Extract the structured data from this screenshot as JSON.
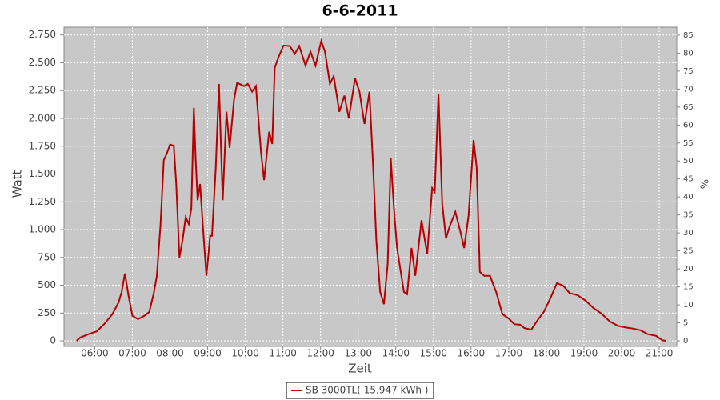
{
  "chart_data": {
    "type": "line",
    "title": "6-6-2011",
    "x_label": "Zeit",
    "y_label": "Watt",
    "y2_label": "%",
    "x": [
      "05:31",
      "05:37",
      "05:50",
      "06:03",
      "06:15",
      "06:28",
      "06:38",
      "06:43",
      "06:48",
      "06:54",
      "07:00",
      "07:09",
      "07:19",
      "07:27",
      "07:34",
      "07:39",
      "07:45",
      "07:50",
      "07:55",
      "08:00",
      "08:06",
      "08:10",
      "08:15",
      "08:20",
      "08:25",
      "08:30",
      "08:34",
      "08:38",
      "08:41",
      "08:44",
      "08:48",
      "08:53",
      "08:58",
      "09:04",
      "09:07",
      "09:13",
      "09:18",
      "09:24",
      "09:30",
      "09:35",
      "09:42",
      "09:47",
      "09:58",
      "10:04",
      "10:11",
      "10:17",
      "10:25",
      "10:30",
      "10:38",
      "10:43",
      "10:47",
      "10:53",
      "11:01",
      "11:11",
      "11:19",
      "11:26",
      "11:36",
      "11:44",
      "11:52",
      "12:01",
      "12:07",
      "12:15",
      "12:21",
      "12:30",
      "12:38",
      "12:45",
      "12:55",
      "13:02",
      "13:10",
      "13:18",
      "13:24",
      "13:29",
      "13:35",
      "13:41",
      "13:47",
      "13:52",
      "13:57",
      "14:02",
      "14:07",
      "14:13",
      "14:18",
      "14:25",
      "14:31",
      "14:36",
      "14:41",
      "14:50",
      "14:58",
      "15:02",
      "15:08",
      "15:14",
      "15:20",
      "15:25",
      "15:35",
      "15:43",
      "15:49",
      "15:56",
      "16:04",
      "16:09",
      "16:14",
      "16:21",
      "16:30",
      "16:40",
      "16:50",
      "17:00",
      "17:09",
      "17:18",
      "17:25",
      "17:36",
      "17:46",
      "17:56",
      "18:07",
      "18:17",
      "18:27",
      "18:37",
      "18:50",
      "19:03",
      "19:15",
      "19:28",
      "19:41",
      "19:54",
      "20:07",
      "20:19",
      "20:30",
      "20:42",
      "20:55",
      "21:05",
      "21:11"
    ],
    "series": [
      {
        "name": "SB 3000TL( 15,947 kWh )",
        "color": "#b40000",
        "values": [
          0,
          30,
          60,
          85,
          150,
          240,
          345,
          440,
          605,
          400,
          225,
          195,
          225,
          260,
          425,
          580,
          1050,
          1625,
          1685,
          1765,
          1755,
          1410,
          750,
          905,
          1110,
          1050,
          1195,
          2095,
          1625,
          1265,
          1410,
          980,
          585,
          945,
          945,
          1555,
          2310,
          1265,
          2060,
          1735,
          2165,
          2320,
          2290,
          2310,
          2240,
          2290,
          1700,
          1445,
          1880,
          1770,
          2455,
          2550,
          2655,
          2650,
          2580,
          2650,
          2475,
          2600,
          2475,
          2695,
          2600,
          2310,
          2380,
          2060,
          2205,
          2000,
          2360,
          2240,
          1950,
          2240,
          1555,
          905,
          440,
          330,
          690,
          1640,
          1195,
          835,
          655,
          440,
          420,
          835,
          585,
          835,
          1085,
          780,
          1375,
          1340,
          2220,
          1230,
          920,
          1015,
          1160,
          980,
          835,
          1125,
          1805,
          1555,
          620,
          585,
          585,
          440,
          240,
          200,
          150,
          145,
          115,
          100,
          185,
          260,
          390,
          520,
          495,
          430,
          410,
          360,
          295,
          245,
          175,
          135,
          120,
          110,
          95,
          60,
          45,
          5,
          0
        ]
      }
    ],
    "xlim": [
      "05:11",
      "21:28"
    ],
    "xticks": [
      "06:00",
      "07:00",
      "08:00",
      "09:00",
      "10:00",
      "11:00",
      "12:00",
      "13:00",
      "14:00",
      "15:00",
      "16:00",
      "17:00",
      "18:00",
      "19:00",
      "20:00",
      "21:00"
    ],
    "ylim": [
      -50,
      2820
    ],
    "yticks": [
      0,
      250,
      500,
      750,
      {
        "value": 1000,
        "label": "1.000"
      },
      {
        "value": 1250,
        "label": "1.250"
      },
      {
        "value": 1500,
        "label": "1.500"
      },
      {
        "value": 1750,
        "label": "1.750"
      },
      {
        "value": 2000,
        "label": "2.000"
      },
      {
        "value": 2250,
        "label": "2.250"
      },
      {
        "value": 2500,
        "label": "2.500"
      },
      {
        "value": 2750,
        "label": "2.750"
      }
    ],
    "y2lim": [
      -1.55,
      87.2
    ],
    "y2ticks": [
      0,
      5,
      10,
      15,
      20,
      25,
      30,
      35,
      40,
      45,
      50,
      55,
      60,
      65,
      70,
      75,
      80,
      85
    ],
    "grid": true,
    "legend": "bottom"
  }
}
